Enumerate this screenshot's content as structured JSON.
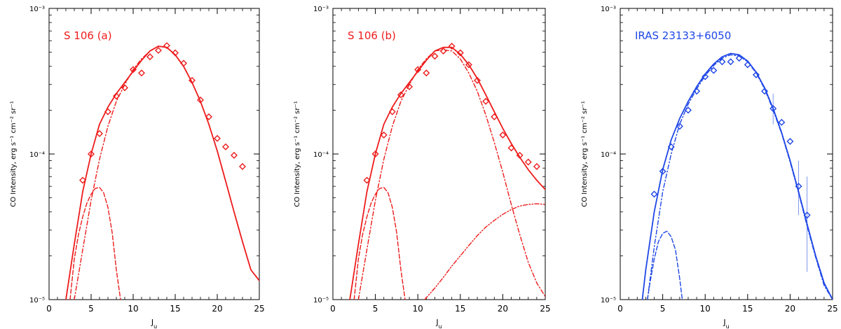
{
  "colors": {
    "red": "#ee1c1c",
    "blue": "#1f47e6",
    "axis": "#000000"
  },
  "chart_data": [
    {
      "type": "scatter",
      "title": "S 106 (a)",
      "color": "#ee1c1c",
      "xlabel": "J_u",
      "ylabel": "CO Intensity, erg s⁻¹ cm⁻² sr⁻¹",
      "xlim": [
        0,
        25
      ],
      "ylim": [
        1e-05,
        0.001
      ],
      "yscale": "log",
      "grid": false,
      "x_ticks": [
        "0",
        "5",
        "10",
        "15",
        "20",
        "25"
      ],
      "y_ticks": [
        "10⁻⁵",
        "10⁻⁴",
        "10⁻³"
      ],
      "observed": {
        "marker": "diamond",
        "x": [
          4,
          5,
          6,
          7,
          8,
          9,
          10,
          11,
          12,
          13,
          14,
          15,
          16,
          17,
          18,
          19,
          20,
          21,
          22,
          23
        ],
        "y": [
          6.6e-05,
          0.0001,
          0.000138,
          0.000195,
          0.00025,
          0.000285,
          0.00038,
          0.00036,
          0.000465,
          0.000515,
          0.000555,
          0.000495,
          0.00042,
          0.00032,
          0.000235,
          0.00018,
          0.000128,
          0.000112,
          9.8e-05,
          8.2e-05
        ]
      },
      "model_curves": [
        {
          "style": "solid",
          "x": [
            2,
            3,
            4,
            5,
            6,
            7,
            8,
            9,
            10,
            11,
            12,
            13,
            14,
            15,
            16,
            17,
            18,
            19,
            20,
            21,
            22,
            23,
            24,
            25
          ],
          "y": [
            1e-05,
            2.4e-05,
            5.5e-05,
            0.0001,
            0.00016,
            0.00021,
            0.00026,
            0.00031,
            0.00037,
            0.00044,
            0.00051,
            0.00055,
            0.00054,
            0.00048,
            0.0004,
            0.00031,
            0.00023,
            0.00016,
            0.000105,
            6.5e-05,
            4e-05,
            2.5e-05,
            1.6e-05,
            1.35e-05
          ]
        },
        {
          "style": "dash-dot",
          "x": [
            3,
            4,
            5,
            6,
            7,
            8,
            9,
            10,
            11,
            12,
            13,
            14,
            15,
            16,
            17,
            18,
            19,
            20,
            21,
            22,
            23,
            24,
            25
          ],
          "y": [
            1e-05,
            2.2e-05,
            4.8e-05,
            9.2e-05,
            0.000155,
            0.00023,
            0.0003,
            0.00038,
            0.00045,
            0.00051,
            0.00055,
            0.00054,
            0.00048,
            0.0004,
            0.00031,
            0.00023,
            0.00016,
            0.000105,
            6.5e-05,
            4e-05,
            2.5e-05,
            1.6e-05,
            1.35e-05
          ]
        },
        {
          "style": "dashed",
          "x": [
            2.5,
            3,
            3.5,
            4,
            4.5,
            5,
            5.5,
            6,
            6.5,
            7,
            7.5,
            8,
            8.5
          ],
          "y": [
            1e-05,
            1.9e-05,
            2.8e-05,
            3.7e-05,
            4.6e-05,
            5.3e-05,
            5.8e-05,
            5.9e-05,
            5.4e-05,
            4.3e-05,
            2.9e-05,
            1.6e-05,
            1e-05
          ]
        }
      ]
    },
    {
      "type": "scatter",
      "title": "S 106 (b)",
      "color": "#ee1c1c",
      "xlabel": "J_u",
      "ylabel": "CO Intensity, erg s⁻¹ cm⁻² sr⁻¹",
      "xlim": [
        0,
        25
      ],
      "ylim": [
        1e-05,
        0.001
      ],
      "yscale": "log",
      "grid": false,
      "x_ticks": [
        "0",
        "5",
        "10",
        "15",
        "20",
        "25"
      ],
      "y_ticks": [
        "10⁻⁵",
        "10⁻⁴",
        "10⁻³"
      ],
      "observed": {
        "marker": "diamond",
        "x": [
          4,
          5,
          6,
          7,
          8,
          9,
          10,
          11,
          12,
          13,
          14,
          15,
          16,
          17,
          18,
          19,
          20,
          21,
          22,
          23,
          24
        ],
        "y": [
          6.6e-05,
          0.0001,
          0.000135,
          0.000195,
          0.000255,
          0.00029,
          0.00038,
          0.00036,
          0.00047,
          0.00051,
          0.00055,
          0.000495,
          0.00041,
          0.00032,
          0.00023,
          0.00018,
          0.000135,
          0.00011,
          9.8e-05,
          8.8e-05,
          8.2e-05
        ]
      },
      "model_curves": [
        {
          "style": "solid",
          "x": [
            2,
            3,
            4,
            5,
            6,
            7,
            8,
            9,
            10,
            11,
            12,
            13,
            14,
            15,
            16,
            17,
            18,
            19,
            20,
            21,
            22,
            23,
            24,
            25
          ],
          "y": [
            1e-05,
            2.4e-05,
            5.5e-05,
            0.0001,
            0.00016,
            0.00021,
            0.00026,
            0.00031,
            0.00037,
            0.00044,
            0.00051,
            0.00054,
            0.00054,
            0.000485,
            0.00041,
            0.00033,
            0.000255,
            0.000195,
            0.00015,
            0.000118,
            9.5e-05,
            7.8e-05,
            6.6e-05,
            5.7e-05
          ]
        },
        {
          "style": "dash-dot",
          "x": [
            3,
            4,
            5,
            6,
            7,
            8,
            9,
            10,
            11,
            12,
            13,
            14,
            15,
            16,
            17,
            18,
            19,
            20,
            21,
            22,
            23,
            24,
            25
          ],
          "y": [
            1e-05,
            2.2e-05,
            4.8e-05,
            9.2e-05,
            0.000155,
            0.00023,
            0.0003,
            0.00038,
            0.00045,
            0.00051,
            0.00052,
            0.00051,
            0.00045,
            0.00036,
            0.00027,
            0.000185,
            0.00012,
            7.5e-05,
            4.5e-05,
            2.8e-05,
            1.8e-05,
            1.3e-05,
            1.05e-05
          ]
        },
        {
          "style": "dashed",
          "x": [
            2.5,
            3,
            3.5,
            4,
            4.5,
            5,
            5.5,
            6,
            6.5,
            7,
            7.5,
            8,
            8.5
          ],
          "y": [
            1e-05,
            1.9e-05,
            2.8e-05,
            3.7e-05,
            4.6e-05,
            5.3e-05,
            5.8e-05,
            5.9e-05,
            5.4e-05,
            4.3e-05,
            2.9e-05,
            1.6e-05,
            1e-05
          ]
        },
        {
          "style": "dash-dot-dot",
          "x": [
            10.8,
            12,
            13,
            14,
            15,
            16,
            17,
            18,
            19,
            20,
            21,
            22,
            23,
            24,
            25
          ],
          "y": [
            1e-05,
            1.2e-05,
            1.42e-05,
            1.7e-05,
            2e-05,
            2.35e-05,
            2.75e-05,
            3.15e-05,
            3.5e-05,
            3.85e-05,
            4.15e-05,
            4.4e-05,
            4.5e-05,
            4.55e-05,
            4.5e-05
          ]
        }
      ]
    },
    {
      "type": "scatter",
      "title": "IRAS 23133+6050",
      "color": "#1f47e6",
      "xlabel": "J_u",
      "ylabel": "CO Intensity, erg s⁻¹ cm⁻² sr⁻¹",
      "xlim": [
        0,
        25
      ],
      "ylim": [
        1e-05,
        0.001
      ],
      "yscale": "log",
      "grid": false,
      "x_ticks": [
        "0",
        "5",
        "10",
        "15",
        "20",
        "25"
      ],
      "y_ticks": [
        "10⁻⁵",
        "10⁻⁴",
        "10⁻³"
      ],
      "observed": {
        "marker": "diamond",
        "x": [
          4,
          5,
          6,
          7,
          8,
          9,
          10,
          11,
          12,
          13,
          14,
          15,
          16,
          17,
          18,
          19,
          20,
          21,
          22
        ],
        "y": [
          5.3e-05,
          7.6e-05,
          0.000112,
          0.000155,
          0.0002,
          0.00027,
          0.00034,
          0.000375,
          0.00043,
          0.00043,
          0.000455,
          0.00041,
          0.00035,
          0.00027,
          0.000205,
          0.000165,
          0.000122,
          6e-05,
          3.8e-05
        ],
        "error_bars": [
          {
            "x": 18,
            "low": 0.00016,
            "high": 0.00026
          },
          {
            "x": 21,
            "low": 3.8e-05,
            "high": 9e-05
          },
          {
            "x": 22,
            "low": 1.55e-05,
            "high": 7e-05
          }
        ]
      },
      "model_curves": [
        {
          "style": "solid",
          "x": [
            2.6,
            3,
            4,
            5,
            6,
            7,
            8,
            9,
            10,
            11,
            12,
            13,
            14,
            15,
            16,
            17,
            18,
            19,
            20,
            21,
            22,
            23,
            24,
            25
          ],
          "y": [
            1e-05,
            1.6e-05,
            4e-05,
            7.8e-05,
            0.000125,
            0.000175,
            0.00023,
            0.00029,
            0.000355,
            0.000415,
            0.000465,
            0.00049,
            0.00048,
            0.000435,
            0.000365,
            0.000285,
            0.000205,
            0.00014,
            9e-05,
            5.5e-05,
            3.3e-05,
            2e-05,
            1.3e-05,
            1e-05
          ]
        },
        {
          "style": "dash-dot",
          "x": [
            3.2,
            4,
            5,
            6,
            7,
            8,
            9,
            10,
            11,
            12,
            13,
            14,
            15,
            16,
            17,
            18,
            19,
            20,
            21,
            22,
            23,
            24,
            25
          ],
          "y": [
            1e-05,
            2.3e-05,
            5.5e-05,
            0.0001,
            0.00016,
            0.00022,
            0.00028,
            0.000345,
            0.000405,
            0.000455,
            0.00048,
            0.00047,
            0.00043,
            0.00036,
            0.00028,
            0.0002,
            0.000138,
            8.8e-05,
            5.4e-05,
            3.2e-05,
            1.95e-05,
            1.25e-05,
            1e-05
          ]
        },
        {
          "style": "dashed",
          "x": [
            3.2,
            3.5,
            4,
            4.5,
            5,
            5.5,
            6,
            6.5,
            7,
            7.3
          ],
          "y": [
            1e-05,
            1.3e-05,
            1.9e-05,
            2.5e-05,
            2.85e-05,
            2.95e-05,
            2.7e-05,
            2.2e-05,
            1.4e-05,
            1e-05
          ]
        }
      ]
    }
  ]
}
